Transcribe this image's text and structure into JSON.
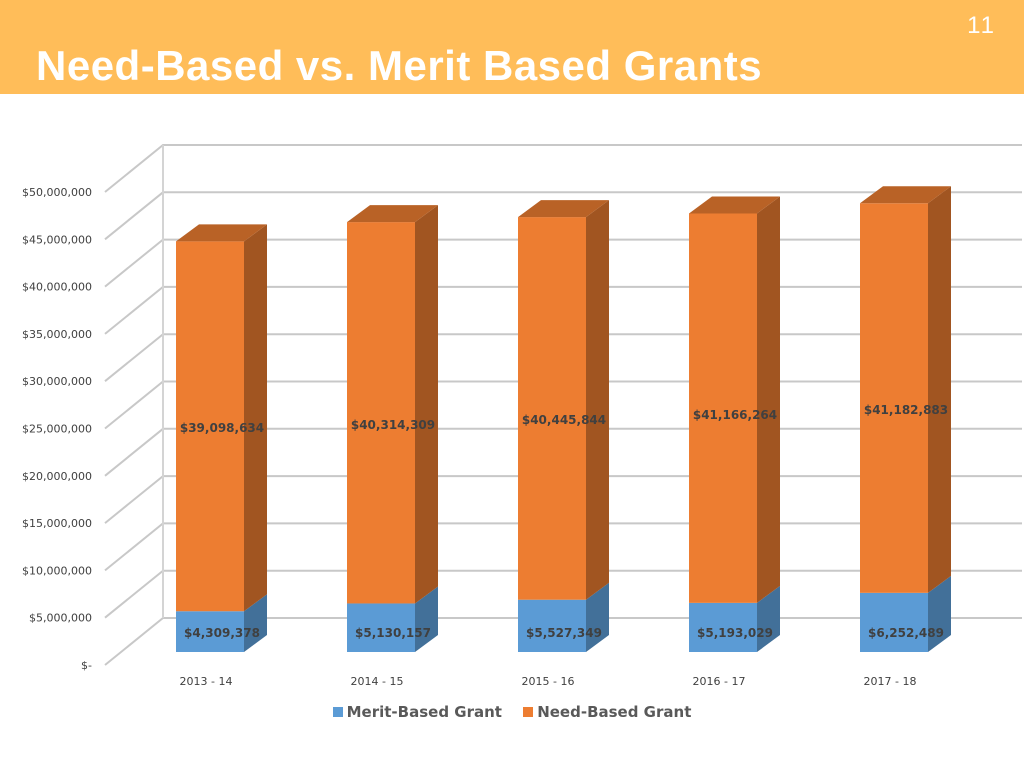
{
  "slide": {
    "title": "Need-Based vs. Merit Based Grants",
    "number": "11"
  },
  "colors": {
    "header": "#FFBD59",
    "merit": "#5B9BD5",
    "need": "#ED7D31"
  },
  "chart_data": {
    "type": "bar",
    "stacked": true,
    "three_d": true,
    "title": "",
    "xlabel": "",
    "ylabel": "",
    "ylim": [
      0,
      50000000
    ],
    "y_ticks": [
      0,
      5000000,
      10000000,
      15000000,
      20000000,
      25000000,
      30000000,
      35000000,
      40000000,
      45000000,
      50000000
    ],
    "y_tick_labels": [
      "$-",
      "$5,000,000",
      "$10,000,000",
      "$15,000,000",
      "$20,000,000",
      "$25,000,000",
      "$30,000,000",
      "$35,000,000",
      "$40,000,000",
      "$45,000,000",
      "$50,000,000"
    ],
    "grid": true,
    "legend_position": "bottom",
    "categories": [
      "2013 - 14",
      "2014 - 15",
      "2015 - 16",
      "2016 - 17",
      "2017 - 18"
    ],
    "series": [
      {
        "name": "Merit-Based Grant",
        "color": "#5B9BD5",
        "values": [
          4309378,
          5130157,
          5527349,
          5193029,
          6252489
        ],
        "labels": [
          "$4,309,378",
          "$5,130,157",
          "$5,527,349",
          "$5,193,029",
          "$6,252,489"
        ]
      },
      {
        "name": "Need-Based Grant",
        "color": "#ED7D31",
        "values": [
          39098634,
          40314309,
          40445844,
          41166264,
          41182883
        ],
        "labels": [
          "$39,098,634",
          "$40,314,309",
          "$40,445,844",
          "$41,166,264",
          "$41,182,883"
        ]
      }
    ]
  }
}
